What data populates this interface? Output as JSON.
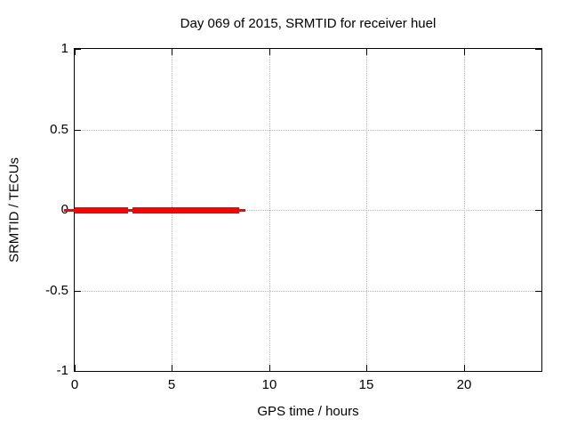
{
  "chart_data": {
    "type": "line",
    "title": "Day 069 of 2015, SRMTID for receiver huel",
    "xlabel": "GPS time / hours",
    "ylabel": "SRMTID / TECUs",
    "xlim": [
      0,
      24
    ],
    "ylim": [
      -1,
      1
    ],
    "grid": true,
    "legend": "none",
    "xticks": [
      {
        "value": 0,
        "label": "0"
      },
      {
        "value": 5,
        "label": "5"
      },
      {
        "value": 10,
        "label": "10"
      },
      {
        "value": 15,
        "label": "15"
      },
      {
        "value": 20,
        "label": "20"
      }
    ],
    "yticks": [
      {
        "value": -1,
        "label": "-1"
      },
      {
        "value": -0.5,
        "label": "-0.5"
      },
      {
        "value": 0,
        "label": "0"
      },
      {
        "value": 0.5,
        "label": "0.5"
      },
      {
        "value": 1,
        "label": "1"
      }
    ],
    "series": [
      {
        "name": "SRMTID",
        "color": "#ff0000",
        "y_value": 0,
        "thick_segments_hours": [
          [
            0,
            2.74
          ],
          [
            2.97,
            8.46
          ]
        ],
        "thin_line_hours": [
          -0.55,
          8.78
        ]
      }
    ]
  },
  "colors": {
    "series": "#ff0000",
    "grid": "#b4b4b4",
    "axis": "#000000",
    "background": "#ffffff"
  }
}
